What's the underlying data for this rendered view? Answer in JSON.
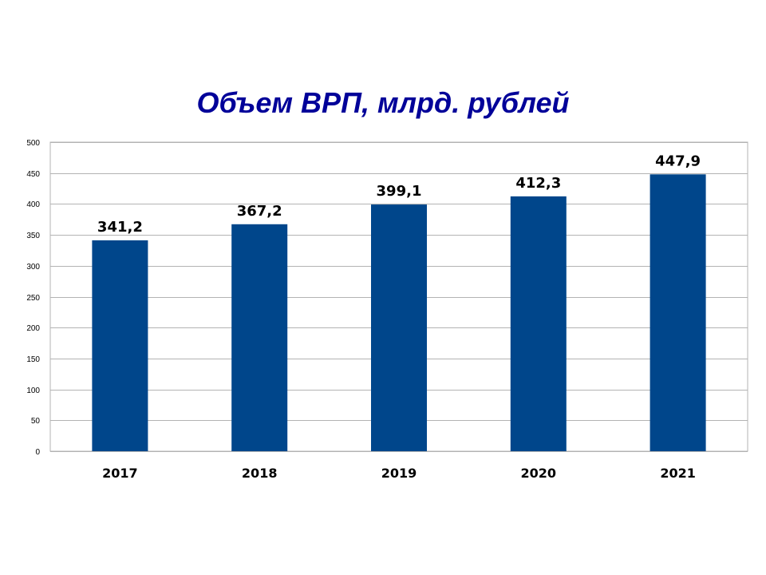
{
  "chart_data": {
    "type": "bar",
    "title": "Объем ВРП, млрд. рублей",
    "categories": [
      "2017",
      "2018",
      "2019",
      "2020",
      "2021"
    ],
    "values": [
      341.2,
      367.2,
      399.1,
      412.3,
      447.9
    ],
    "data_labels": [
      "341,2",
      "367,2",
      "399,1",
      "412,3",
      "447,9"
    ],
    "ylim": [
      0,
      500
    ],
    "yticks": [
      0,
      50,
      100,
      150,
      200,
      250,
      300,
      350,
      400,
      450,
      500
    ],
    "grid": true,
    "legend": "none",
    "bar_color": "#00468B",
    "title_color": "#000099",
    "grid_color": "#B3B3B3"
  }
}
